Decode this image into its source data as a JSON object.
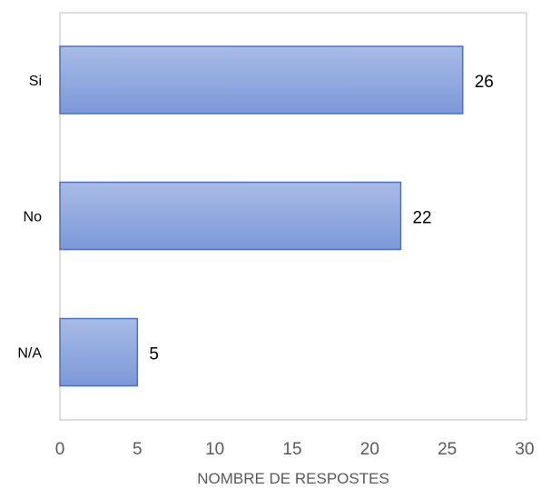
{
  "chart_data": {
    "type": "bar",
    "orientation": "horizontal",
    "categories": [
      "Si",
      "No",
      "N/A"
    ],
    "values": [
      26,
      22,
      5
    ],
    "data_labels": [
      "26",
      "22",
      "5"
    ],
    "title": "",
    "xlabel": "NOMBRE DE RESPOSTES",
    "ylabel": "",
    "xlim": [
      0,
      30
    ],
    "x_ticks": [
      0,
      5,
      10,
      15,
      20,
      25,
      30
    ],
    "x_tick_labels": [
      "0",
      "5",
      "10",
      "15",
      "20",
      "25",
      "30"
    ],
    "grid": false,
    "legend": "none",
    "bar_fill_top": "#a9bbe6",
    "bar_fill_bottom": "#7c98d8",
    "bar_border": "#4a72c4",
    "frame_color": "#bfbfbf",
    "tick_label_color": "#595959",
    "label_color": "#000000"
  }
}
